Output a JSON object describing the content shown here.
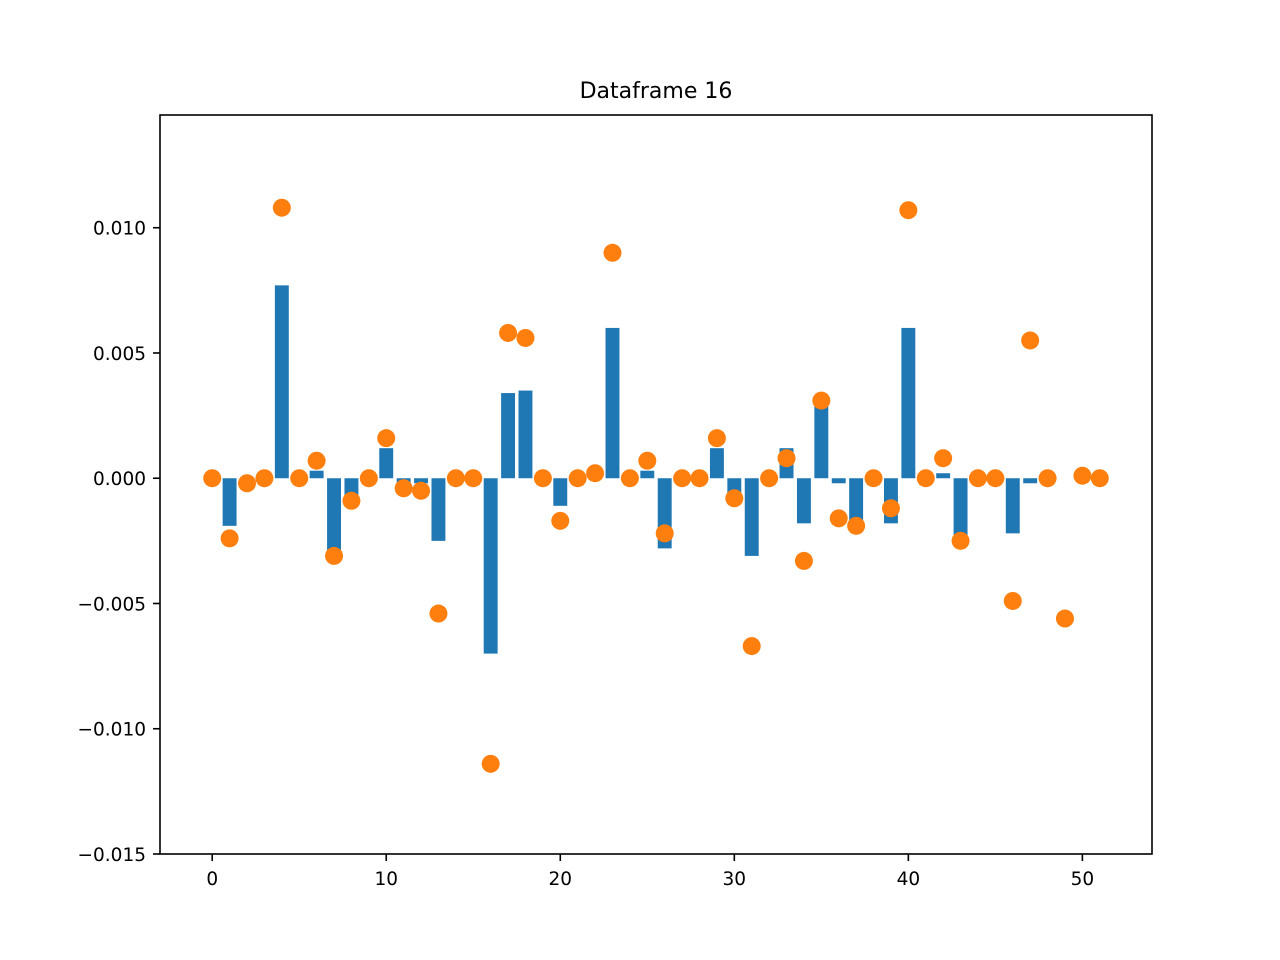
{
  "chart_data": {
    "type": "bar",
    "title": "Dataframe 16",
    "xlabel": "",
    "ylabel": "",
    "xlim": [
      -3,
      54
    ],
    "ylim": [
      -0.015,
      0.0145
    ],
    "grid": false,
    "x_ticks": [
      0,
      10,
      20,
      30,
      40,
      50
    ],
    "x_tick_labels": [
      "0",
      "10",
      "20",
      "30",
      "40",
      "50"
    ],
    "y_ticks": [
      0.01,
      0.005,
      0.0,
      -0.005,
      -0.01,
      -0.015
    ],
    "y_tick_labels": [
      "0.010",
      "0.005",
      "0.000",
      "−0.005",
      "−0.010",
      "−0.015"
    ],
    "colors": {
      "bars": "#1f77b4",
      "points": "#ff7f0e"
    },
    "series": [
      {
        "kind": "bar",
        "x": [
          0,
          1,
          2,
          3,
          4,
          5,
          6,
          7,
          8,
          9,
          10,
          11,
          12,
          13,
          14,
          15,
          16,
          17,
          18,
          19,
          20,
          21,
          22,
          23,
          24,
          25,
          26,
          27,
          28,
          29,
          30,
          31,
          32,
          33,
          34,
          35,
          36,
          37,
          38,
          39,
          40,
          41,
          42,
          43,
          44,
          45,
          46,
          47,
          48,
          49,
          50,
          51
        ],
        "values": [
          0.0,
          -0.0019,
          -0.0002,
          0.0,
          0.0077,
          0.0,
          0.0003,
          -0.0031,
          -0.0008,
          0.0,
          0.0012,
          -0.0002,
          -0.0002,
          -0.0025,
          0.0,
          0.0,
          -0.007,
          0.0034,
          0.0035,
          0.0,
          -0.0011,
          0.0,
          0.0,
          0.006,
          0.0,
          0.0003,
          -0.0028,
          0.0,
          0.0,
          0.0012,
          -0.0006,
          -0.0031,
          0.0,
          0.0012,
          -0.0018,
          0.003,
          -0.0002,
          -0.0018,
          0.0,
          -0.0018,
          0.006,
          0.0,
          0.0002,
          -0.0025,
          0.0,
          0.0,
          -0.0022,
          -0.0002,
          0.0,
          0.0,
          0.0,
          0.0
        ]
      },
      {
        "kind": "scatter",
        "x": [
          0,
          1,
          2,
          3,
          4,
          5,
          6,
          7,
          8,
          9,
          10,
          11,
          12,
          13,
          14,
          15,
          16,
          17,
          18,
          19,
          20,
          21,
          22,
          23,
          24,
          25,
          26,
          27,
          28,
          29,
          30,
          31,
          32,
          33,
          34,
          35,
          36,
          37,
          38,
          39,
          40,
          41,
          42,
          43,
          44,
          45,
          46,
          47,
          48,
          49,
          50,
          51
        ],
        "values": [
          0.0,
          -0.0024,
          -0.0002,
          0.0,
          0.0108,
          0.0,
          0.0007,
          -0.0031,
          -0.0009,
          0.0,
          0.0016,
          -0.0004,
          -0.0005,
          -0.0054,
          0.0,
          0.0,
          -0.0114,
          0.0058,
          0.0056,
          0.0,
          -0.0017,
          0.0,
          0.0002,
          0.009,
          0.0,
          0.0007,
          -0.0022,
          0.0,
          0.0,
          0.0016,
          -0.0008,
          -0.0067,
          0.0,
          0.0008,
          -0.0033,
          0.0031,
          -0.0016,
          -0.0019,
          0.0,
          -0.0012,
          0.0107,
          0.0,
          0.0008,
          -0.0025,
          0.0,
          0.0,
          -0.0049,
          0.0055,
          0.0,
          -0.0056,
          0.0001,
          0.0
        ]
      }
    ]
  }
}
